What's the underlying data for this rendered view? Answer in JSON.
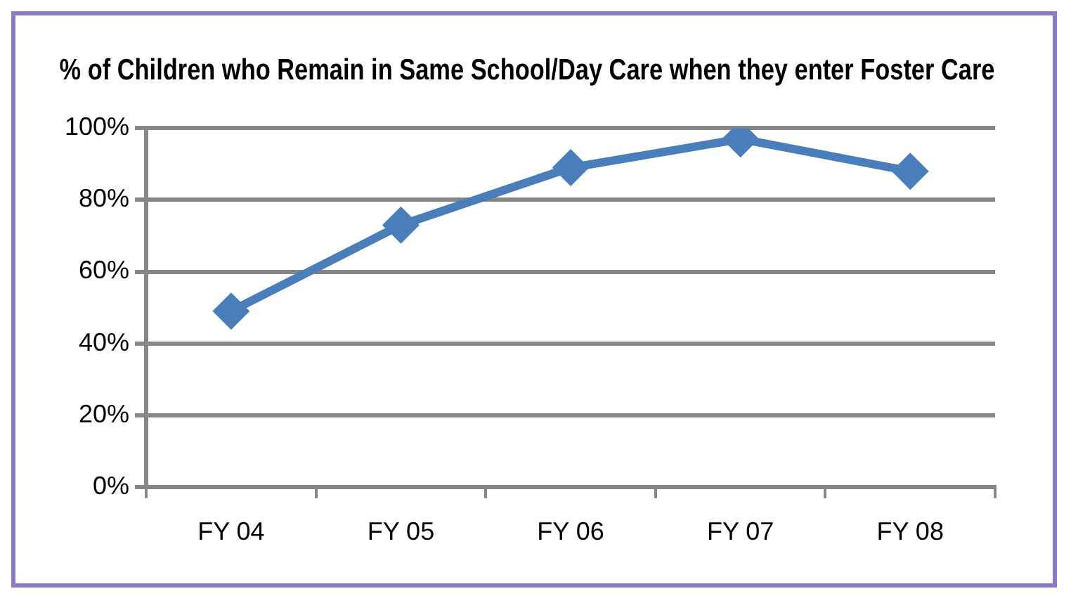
{
  "chart_data": {
    "type": "line",
    "title": "% of Children who Remain in Same School/Day Care when they enter Foster Care",
    "categories": [
      "FY 04",
      "FY 05",
      "FY 06",
      "FY 07",
      "FY 08"
    ],
    "series": [
      {
        "color": "#4a7ebb",
        "values": [
          49,
          73,
          89,
          97,
          88
        ]
      }
    ],
    "ylim": [
      0,
      100
    ],
    "yticks": [
      {
        "value": 0,
        "label": "0%"
      },
      {
        "value": 20,
        "label": "20%"
      },
      {
        "value": 40,
        "label": "40%"
      },
      {
        "value": 60,
        "label": "60%"
      },
      {
        "value": 80,
        "label": "80%"
      },
      {
        "value": 100,
        "label": "100%"
      }
    ],
    "grid": "y",
    "legend": false,
    "marker": "diamond",
    "line_style": "solid"
  }
}
